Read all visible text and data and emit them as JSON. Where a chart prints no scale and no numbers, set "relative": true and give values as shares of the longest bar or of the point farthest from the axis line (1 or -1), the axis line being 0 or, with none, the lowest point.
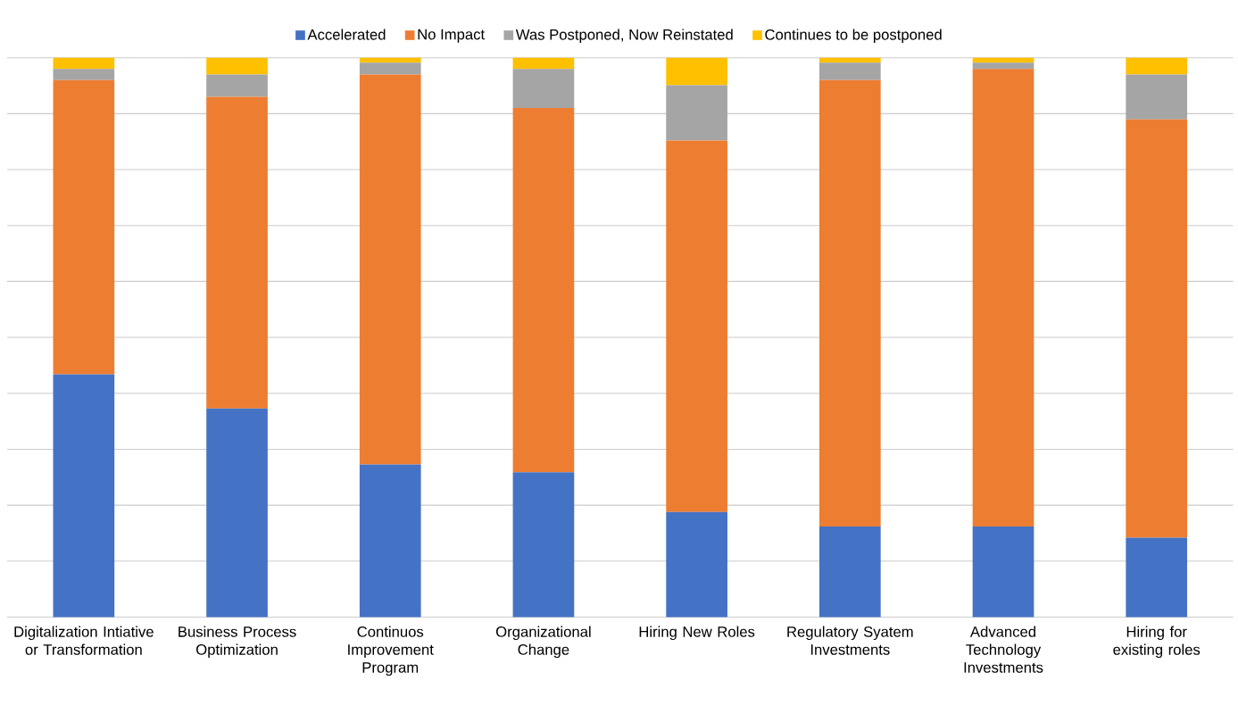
{
  "chart_data": {
    "type": "bar",
    "stacked": true,
    "relative": true,
    "grid": "y",
    "legend": "top",
    "categories": [
      "Digitalization Intiative or Transformation",
      "Business Process Optimization",
      "Continuos Improvement Program",
      "Organizational Change",
      "Hiring New Roles",
      "Regulatory Syatem Investments",
      "Advanced Technology Investments",
      "Hiring for existing roles"
    ],
    "series": [
      {
        "name": "Accelerated",
        "color": "#4472c4",
        "values": [
          0.434,
          0.373,
          0.273,
          0.259,
          0.188,
          0.162,
          0.162,
          0.142
        ]
      },
      {
        "name": "No Impact",
        "color": "#ed7d31",
        "values": [
          0.526,
          0.557,
          0.697,
          0.651,
          0.664,
          0.798,
          0.818,
          0.748
        ]
      },
      {
        "name": "Was Postponed, Now Reinstated",
        "color": "#a5a5a5",
        "values": [
          0.02,
          0.04,
          0.021,
          0.07,
          0.099,
          0.031,
          0.011,
          0.08
        ]
      },
      {
        "name": "Continues to be postponed",
        "color": "#ffc000",
        "values": [
          0.02,
          0.03,
          0.009,
          0.02,
          0.049,
          0.009,
          0.009,
          0.03
        ]
      }
    ]
  }
}
